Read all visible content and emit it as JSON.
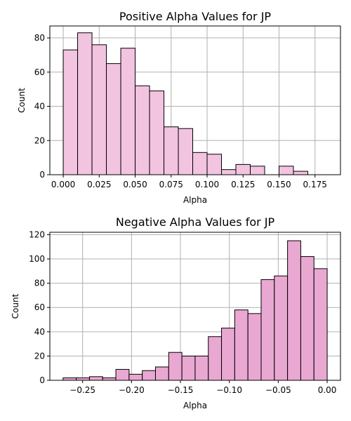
{
  "chart_data": [
    {
      "type": "bar",
      "title": "Positive Alpha Values for JP",
      "xlabel": "Alpha",
      "ylabel": "Count",
      "xlim": [
        -0.0093,
        0.1927
      ],
      "ylim": [
        0,
        87
      ],
      "grid": true,
      "bar_color": "#f2c4e0",
      "edge_color": "#000000",
      "bin_width": 0.01,
      "xticks": [
        0.0,
        0.025,
        0.05,
        0.075,
        0.1,
        0.125,
        0.15,
        0.175
      ],
      "xtick_labels": [
        "0.000",
        "0.025",
        "0.050",
        "0.075",
        "0.100",
        "0.125",
        "0.150",
        "0.175"
      ],
      "yticks": [
        0,
        20,
        40,
        60,
        80
      ],
      "ytick_labels": [
        "0",
        "20",
        "40",
        "60",
        "80"
      ],
      "bins": [
        {
          "start": 0.0,
          "end": 0.01,
          "count": 73
        },
        {
          "start": 0.01,
          "end": 0.02,
          "count": 83
        },
        {
          "start": 0.02,
          "end": 0.03,
          "count": 76
        },
        {
          "start": 0.03,
          "end": 0.04,
          "count": 65
        },
        {
          "start": 0.04,
          "end": 0.05,
          "count": 74
        },
        {
          "start": 0.05,
          "end": 0.06,
          "count": 52
        },
        {
          "start": 0.06,
          "end": 0.07,
          "count": 49
        },
        {
          "start": 0.07,
          "end": 0.08,
          "count": 28
        },
        {
          "start": 0.08,
          "end": 0.09,
          "count": 27
        },
        {
          "start": 0.09,
          "end": 0.1,
          "count": 13
        },
        {
          "start": 0.1,
          "end": 0.11,
          "count": 12
        },
        {
          "start": 0.11,
          "end": 0.12,
          "count": 3
        },
        {
          "start": 0.12,
          "end": 0.13,
          "count": 6
        },
        {
          "start": 0.13,
          "end": 0.14,
          "count": 5
        },
        {
          "start": 0.14,
          "end": 0.15,
          "count": 0
        },
        {
          "start": 0.15,
          "end": 0.16,
          "count": 5
        },
        {
          "start": 0.16,
          "end": 0.17,
          "count": 2
        }
      ]
    },
    {
      "type": "bar",
      "title": "Negative Alpha Values for JP",
      "xlabel": "Alpha",
      "ylabel": "Count",
      "xlim": [
        -0.2835,
        0.0136
      ],
      "ylim": [
        0,
        122
      ],
      "grid": true,
      "bar_color": "#e9a8d2",
      "edge_color": "#000000",
      "bin_width": 0.0135,
      "xticks": [
        -0.25,
        -0.2,
        -0.15,
        -0.1,
        -0.05,
        0.0
      ],
      "xtick_labels": [
        "−0.25",
        "−0.20",
        "−0.15",
        "−0.10",
        "−0.05",
        "0.00"
      ],
      "yticks": [
        0,
        20,
        40,
        60,
        80,
        100,
        120
      ],
      "ytick_labels": [
        "0",
        "20",
        "40",
        "60",
        "80",
        "100",
        "120"
      ],
      "bins": [
        {
          "start": -0.27,
          "end": -0.2565,
          "count": 2
        },
        {
          "start": -0.2565,
          "end": -0.243,
          "count": 2
        },
        {
          "start": -0.243,
          "end": -0.2295,
          "count": 3
        },
        {
          "start": -0.2295,
          "end": -0.216,
          "count": 2
        },
        {
          "start": -0.216,
          "end": -0.2025,
          "count": 9
        },
        {
          "start": -0.2025,
          "end": -0.189,
          "count": 5
        },
        {
          "start": -0.189,
          "end": -0.1755,
          "count": 8
        },
        {
          "start": -0.1755,
          "end": -0.162,
          "count": 11
        },
        {
          "start": -0.162,
          "end": -0.1485,
          "count": 23
        },
        {
          "start": -0.1485,
          "end": -0.135,
          "count": 20
        },
        {
          "start": -0.135,
          "end": -0.1215,
          "count": 20
        },
        {
          "start": -0.1215,
          "end": -0.108,
          "count": 36
        },
        {
          "start": -0.108,
          "end": -0.0945,
          "count": 43
        },
        {
          "start": -0.0945,
          "end": -0.081,
          "count": 58
        },
        {
          "start": -0.081,
          "end": -0.0675,
          "count": 55
        },
        {
          "start": -0.0675,
          "end": -0.054,
          "count": 83
        },
        {
          "start": -0.054,
          "end": -0.0405,
          "count": 86
        },
        {
          "start": -0.0405,
          "end": -0.027,
          "count": 115
        },
        {
          "start": -0.027,
          "end": -0.0135,
          "count": 102
        },
        {
          "start": -0.0135,
          "end": 0.0,
          "count": 92
        }
      ]
    }
  ]
}
